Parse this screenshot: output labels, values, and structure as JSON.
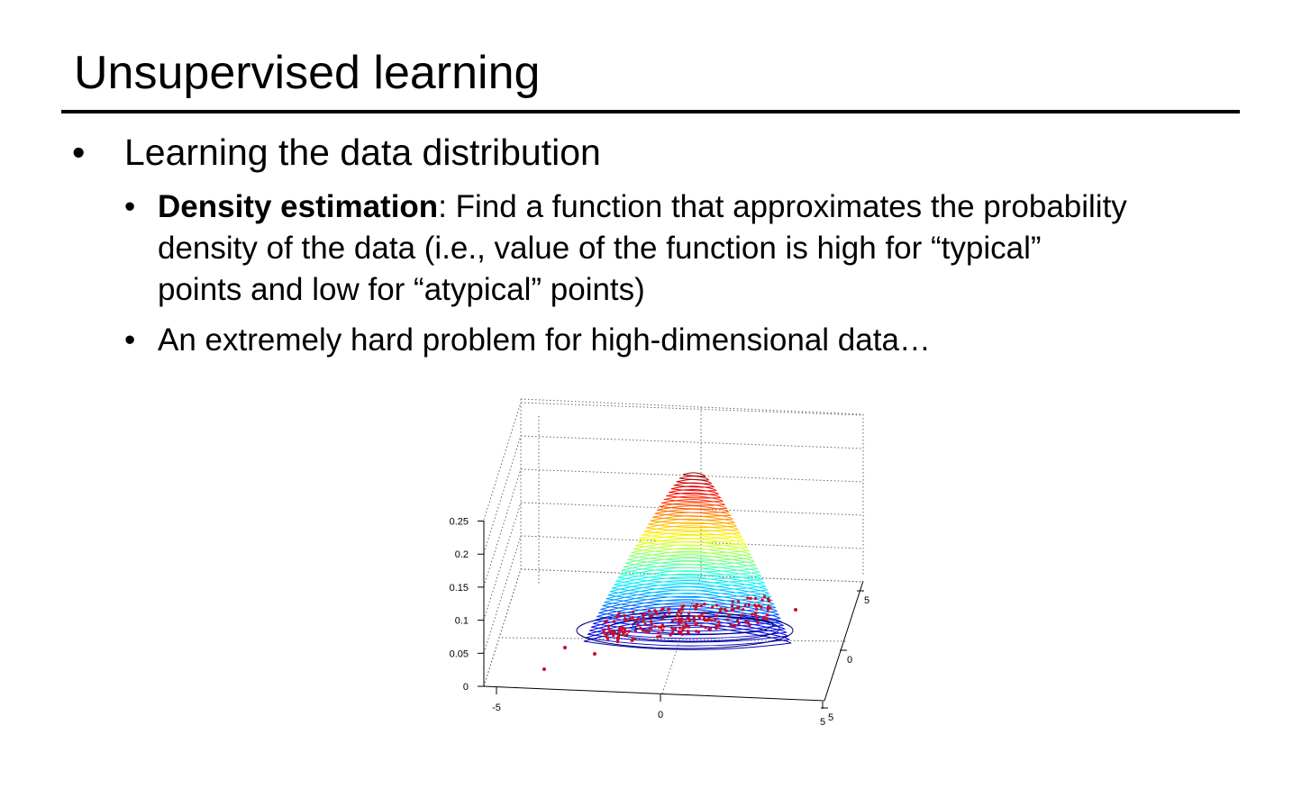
{
  "slide": {
    "title": "Unsupervised learning",
    "bullet1": "Learning the data distribution",
    "bullet_glyph": "•",
    "sub1_bold": "Density estimation",
    "sub1_line1_rest": ": Find a function that approximates the probability",
    "sub1_line2": "density of the data (i.e., value of the function is high for “typical”",
    "sub1_line3": "points and low for “atypical” points)",
    "sub2": "An extremely hard problem for high-dimensional data…"
  },
  "chart_data": {
    "type": "surface3d",
    "title": "",
    "xlabel": "",
    "ylabel": "",
    "zlabel": "",
    "z_ticks": [
      "0",
      "0.05",
      "0.1",
      "0.15",
      "0.2",
      "0.25"
    ],
    "x_ticks": [
      "-5",
      "0",
      "5"
    ],
    "y_ticks": [
      "5",
      "0",
      "5"
    ],
    "colormap": "jet",
    "point_color": "#c8102e",
    "grid": true
  }
}
